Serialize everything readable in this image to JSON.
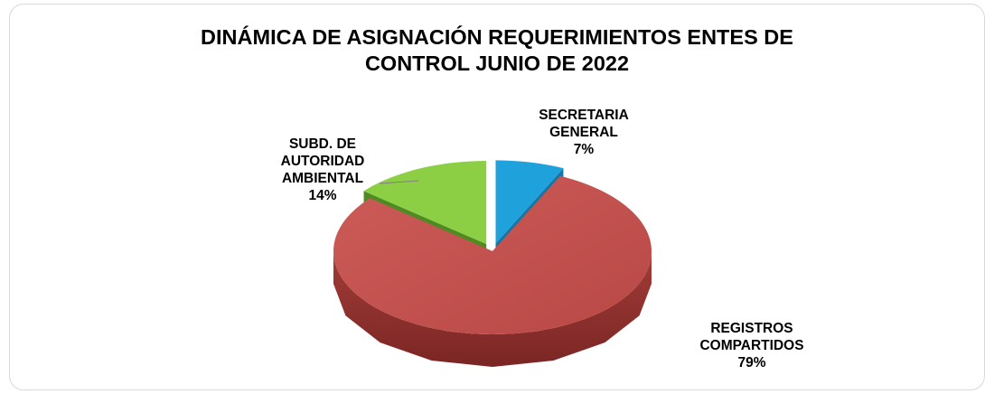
{
  "chart_data": {
    "type": "pie",
    "title_lines": [
      "DINÁMICA DE ASIGNACIÓN REQUERIMIENTOS ENTES DE",
      "CONTROL JUNIO DE 2022"
    ],
    "slices": [
      {
        "name_lines": [
          "SECRETARIA",
          "GENERAL"
        ],
        "value": 7,
        "value_label": "7%",
        "color": "#1fa2dc",
        "side_color": "#1577a6"
      },
      {
        "name_lines": [
          "REGISTROS",
          "COMPARTIDOS"
        ],
        "value": 79,
        "value_label": "79%",
        "color": "#c0504d",
        "side_color": "#8e2f2c"
      },
      {
        "name_lines": [
          "SUBD. DE",
          "AUTORIDAD",
          "AMBIENTAL"
        ],
        "value": 14,
        "value_label": "14%",
        "color": "#8ccf45",
        "side_color": "#4f8a22"
      }
    ],
    "style": "3d-exploded",
    "start_angle_deg": 0,
    "direction": "clockwise"
  }
}
